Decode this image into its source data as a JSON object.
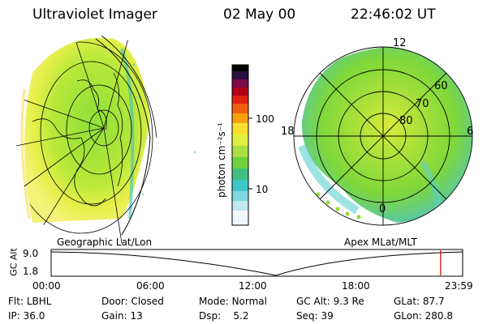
{
  "header": {
    "instrument": "Ultraviolet Imager",
    "date": "02 May 00",
    "time": "22:46:02 UT"
  },
  "colorbar": {
    "label": "photon cm⁻²s⁻¹",
    "ticks": [
      "100",
      "10"
    ]
  },
  "panels": {
    "left_label": "Geographic Lat/Lon",
    "right_label": "Apex MLat/MLT"
  },
  "polar": {
    "mlt": [
      "12",
      "18",
      "6",
      "0"
    ],
    "mlat": [
      "60",
      "70",
      "80"
    ]
  },
  "altitude_plot": {
    "ylabel": "GC Alt",
    "yticks": [
      "9.0",
      "1.8"
    ],
    "xticks": [
      "00:00",
      "06:00",
      "12:00",
      "18:00",
      "23:59"
    ],
    "current_time_fraction": 0.9465
  },
  "status": {
    "row1": [
      {
        "label": "Flt:",
        "value": "LBHL"
      },
      {
        "label": "Door:",
        "value": "Closed"
      },
      {
        "label": "Mode:",
        "value": "Normal"
      },
      {
        "label": "GC Alt:",
        "value": "9.3 Re"
      },
      {
        "label": "GLat:",
        "value": "87.7"
      }
    ],
    "row2": [
      {
        "label": "IP:",
        "value": "36.0"
      },
      {
        "label": "Gain:",
        "value": "13"
      },
      {
        "label": "Dsp:",
        "value": "5.2"
      },
      {
        "label": "Seq:",
        "value": "39"
      },
      {
        "label": "GLon:",
        "value": "280.8"
      }
    ]
  }
}
